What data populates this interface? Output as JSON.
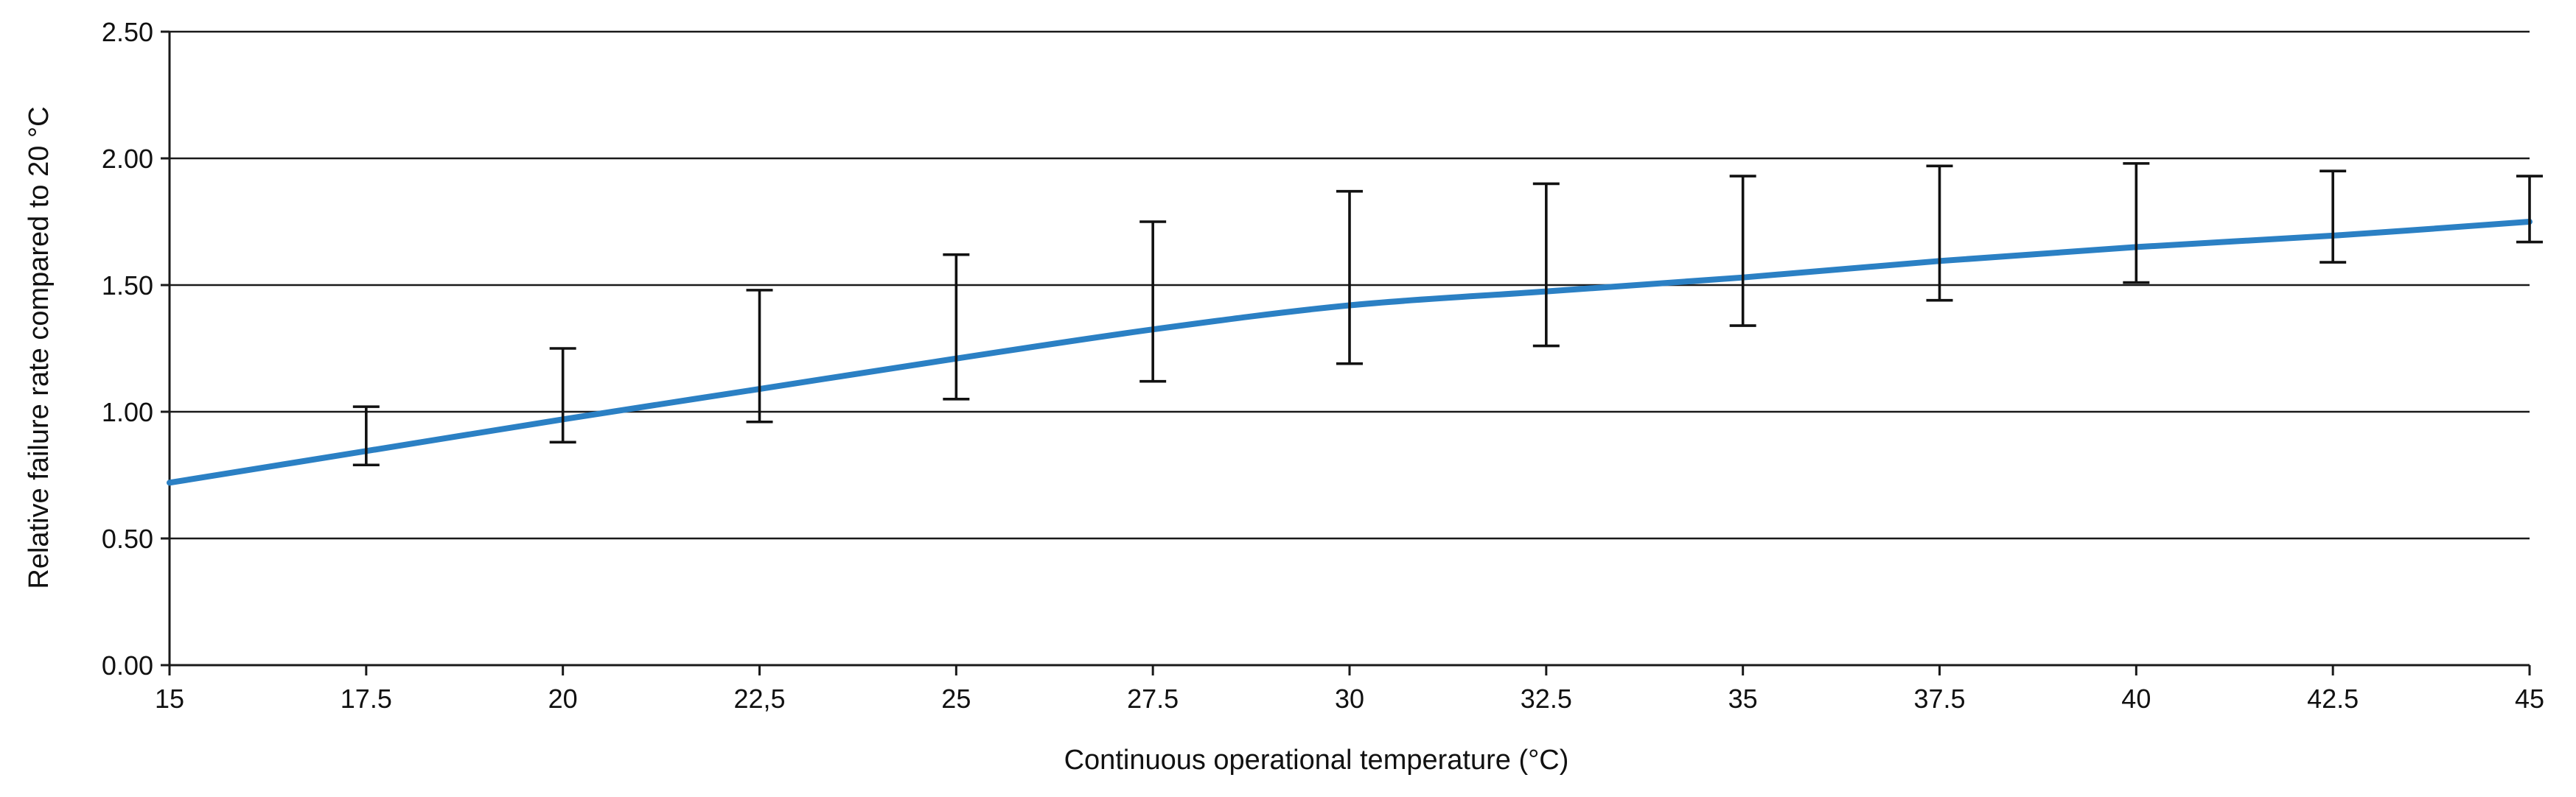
{
  "chart_data": {
    "type": "line",
    "title": "",
    "xlabel": "Continuous operational temperature (°C)",
    "ylabel": "Relative failure rate compared to 20 °C",
    "xlim": [
      15,
      45
    ],
    "ylim": [
      0,
      2.5
    ],
    "grid": true,
    "x_ticks": [
      15,
      17.5,
      20,
      22.5,
      25,
      27.5,
      30,
      32.5,
      35,
      37.5,
      40,
      42.5,
      45
    ],
    "x_tick_labels": [
      "15",
      "17.5",
      "20",
      "22,5",
      "25",
      "27.5",
      "30",
      "32.5",
      "35",
      "37.5",
      "40",
      "42.5",
      "45"
    ],
    "y_ticks": [
      0,
      0.5,
      1.0,
      1.5,
      2.0,
      2.5
    ],
    "y_tick_labels": [
      "0.00",
      "0.50",
      "1.00",
      "1.50",
      "2.00",
      "2.50"
    ],
    "line_color": "#2b80c4",
    "series": [
      {
        "name": "Relative failure rate",
        "x": [
          15,
          17.5,
          20,
          22.5,
          25,
          27.5,
          30,
          32.5,
          35,
          37.5,
          40,
          42.5,
          45
        ],
        "values": [
          0.72,
          0.845,
          0.97,
          1.09,
          1.21,
          1.325,
          1.42,
          1.475,
          1.53,
          1.595,
          1.65,
          1.695,
          1.75
        ]
      }
    ],
    "error_bars": {
      "x": [
        17.5,
        20,
        22.5,
        25,
        27.5,
        30,
        32.5,
        35,
        37.5,
        40,
        42.5,
        45
      ],
      "low": [
        0.79,
        0.88,
        0.96,
        1.05,
        1.12,
        1.19,
        1.26,
        1.34,
        1.44,
        1.51,
        1.59,
        1.67
      ],
      "high": [
        1.02,
        1.25,
        1.48,
        1.62,
        1.75,
        1.87,
        1.9,
        1.93,
        1.97,
        1.98,
        1.95,
        1.93
      ]
    }
  }
}
